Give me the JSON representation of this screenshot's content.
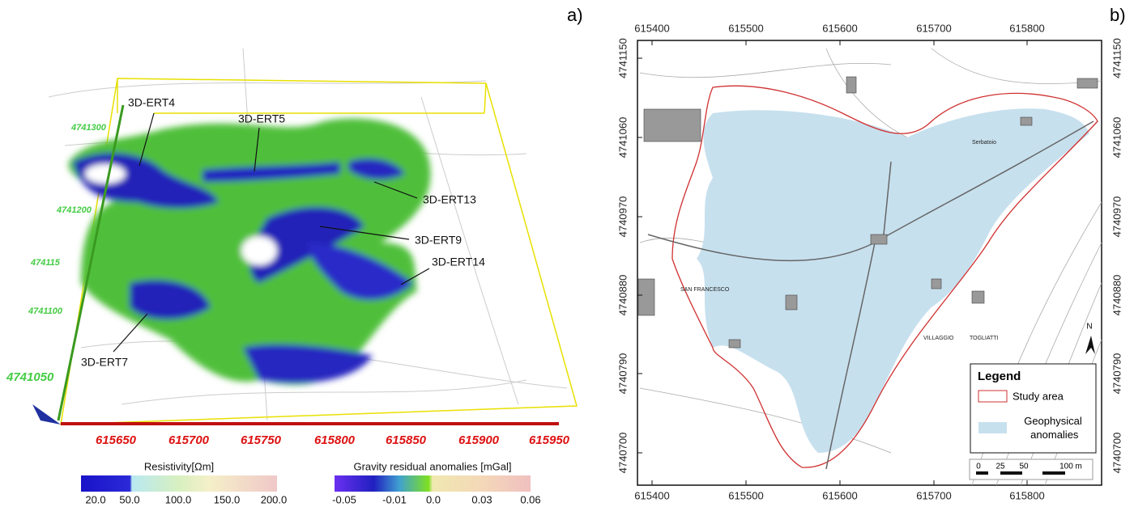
{
  "panel_a": {
    "label": "a)",
    "annotations": [
      "3D-ERT4",
      "3D-ERT5",
      "3D-ERT13",
      "3D-ERT9",
      "3D-ERT14",
      "3D-ERT7"
    ],
    "northing_ticks": [
      "4741300",
      "4741200",
      "474115",
      "4741100",
      "4741050"
    ],
    "easting_ticks": [
      "615650",
      "615700",
      "615750",
      "615800",
      "615850",
      "615900",
      "615950"
    ],
    "colorbars": [
      {
        "title": "Resistivity[Ωm]",
        "ticks": [
          "20.0",
          "50.0",
          "100.0",
          "150.0",
          "200.0"
        ]
      },
      {
        "title": "Gravity residual anomalies [mGal]",
        "ticks": [
          "-0.05",
          "-0.01",
          "0.0",
          "0.03",
          "0.06"
        ]
      }
    ]
  },
  "panel_b": {
    "label": "b)",
    "x_ticks": [
      "615400",
      "615500",
      "615600",
      "615700",
      "615800"
    ],
    "y_ticks": [
      "4741150",
      "4741060",
      "4740970",
      "4740880",
      "4740790",
      "4740700"
    ],
    "map_labels": [
      "SAN FRANCESCO",
      "VILLAGGIO",
      "TOGLIATTI",
      "Serbatoio"
    ],
    "north": "N",
    "legend": {
      "title": "Legend",
      "items": [
        "Study area",
        "Geophysical anomalies"
      ]
    },
    "scale_bar": [
      "0",
      "25",
      "50",
      "100 m"
    ]
  }
}
